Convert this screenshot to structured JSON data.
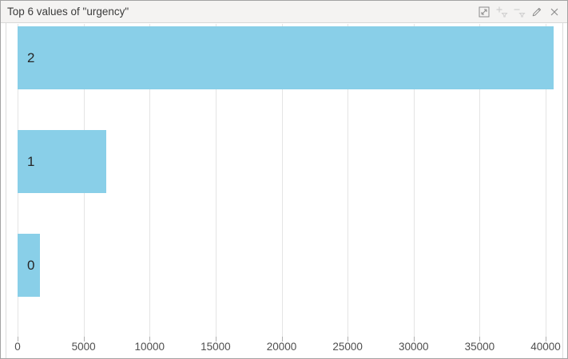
{
  "window": {
    "title": "Top 6 values of \"urgency\""
  },
  "toolbar": {
    "buttons": [
      {
        "name": "expand",
        "icon": "expand-icon",
        "enabled": true
      },
      {
        "name": "add-filter",
        "icon": "add-filter-icon",
        "enabled": false
      },
      {
        "name": "remove-filter",
        "icon": "remove-filter-icon",
        "enabled": false
      },
      {
        "name": "edit",
        "icon": "pencil-icon",
        "enabled": true
      },
      {
        "name": "close",
        "icon": "close-icon",
        "enabled": true
      }
    ]
  },
  "chart_data": {
    "type": "bar",
    "orientation": "horizontal",
    "title": "Top 6 values of \"urgency\"",
    "categories": [
      "2",
      "1",
      "0"
    ],
    "values": [
      40600,
      6700,
      1700
    ],
    "xlabel": "",
    "ylabel": "",
    "xlim": [
      0,
      40000
    ],
    "xticks": [
      0,
      5000,
      10000,
      15000,
      20000,
      25000,
      30000,
      35000,
      40000
    ],
    "grid": true,
    "legend": false,
    "bar_color": "#89CFE8"
  },
  "colors": {
    "bar_fill": "#89CFE8",
    "titlebar_bg": "#f4f3f2",
    "panel_border": "#a3a3a3",
    "gridline": "#e4e4e4",
    "tick_label": "#4f4f4f",
    "icon": "#8a8a8a",
    "icon_disabled": "#cfcfcf"
  }
}
